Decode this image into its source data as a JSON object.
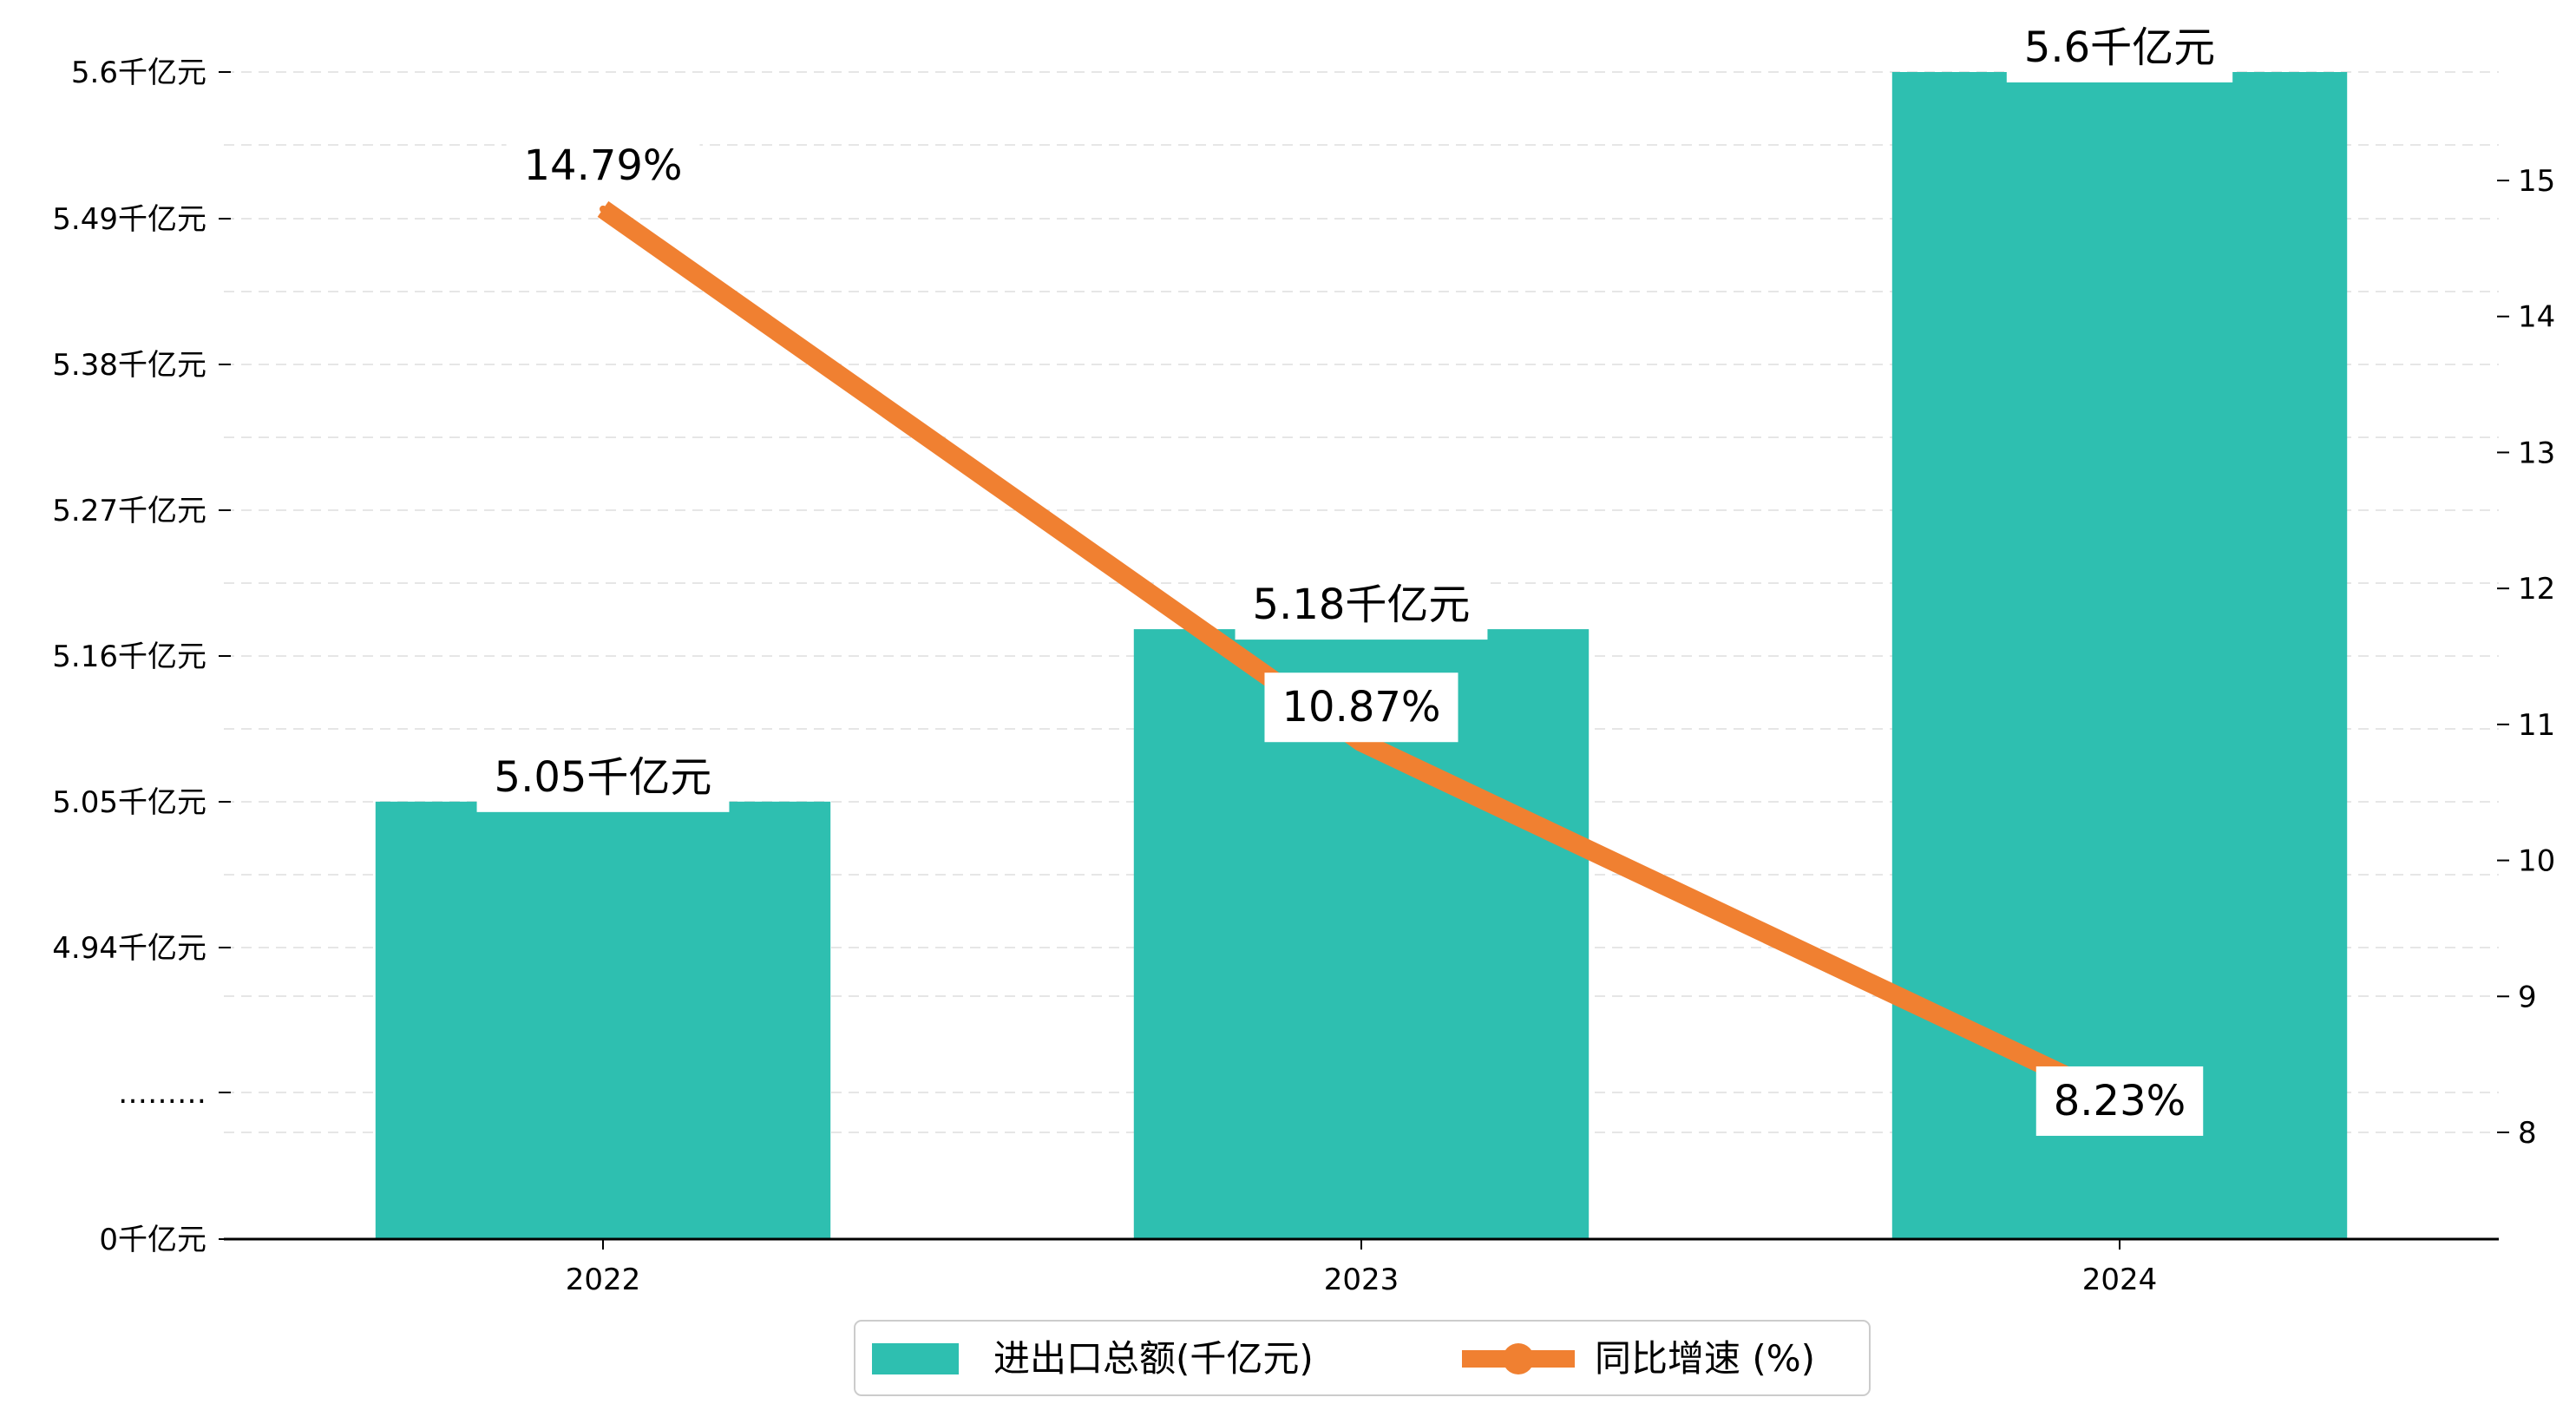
{
  "chart_data": {
    "type": "bar",
    "categories": [
      "2022",
      "2023",
      "2024"
    ],
    "series": [
      {
        "name": "进出口总额(千亿元)",
        "type": "bar",
        "axis": "left",
        "values": [
          5.05,
          5.18,
          5.6
        ],
        "labels": [
          "5.05千亿元",
          "5.18千亿元",
          "5.6千亿元"
        ]
      },
      {
        "name": "同比增速 (%)",
        "type": "line",
        "axis": "right",
        "values": [
          14.79,
          10.87,
          8.23
        ],
        "labels": [
          "14.79%",
          "10.87%",
          "8.23%"
        ]
      }
    ],
    "left_axis": {
      "ticks": [
        {
          "label": "0千亿元"
        },
        {
          "label": "………"
        },
        {
          "label": "4.94千亿元",
          "value": 4.94
        },
        {
          "label": "5.05千亿元",
          "value": 5.05
        },
        {
          "label": "5.16千亿元",
          "value": 5.16
        },
        {
          "label": "5.27千亿元",
          "value": 5.27
        },
        {
          "label": "5.38千亿元",
          "value": 5.38
        },
        {
          "label": "5.49千亿元",
          "value": 5.49
        },
        {
          "label": "5.6千亿元",
          "value": 5.6
        }
      ],
      "broken": true
    },
    "right_axis": {
      "ticks": [
        8,
        9,
        10,
        11,
        12,
        13,
        14,
        15
      ],
      "range": [
        7.2,
        15.8
      ]
    },
    "grid": "horizontal-dashed",
    "legend_position": "bottom-center",
    "colors": {
      "bar": "#2ebfb0",
      "line": "#f08031"
    }
  }
}
